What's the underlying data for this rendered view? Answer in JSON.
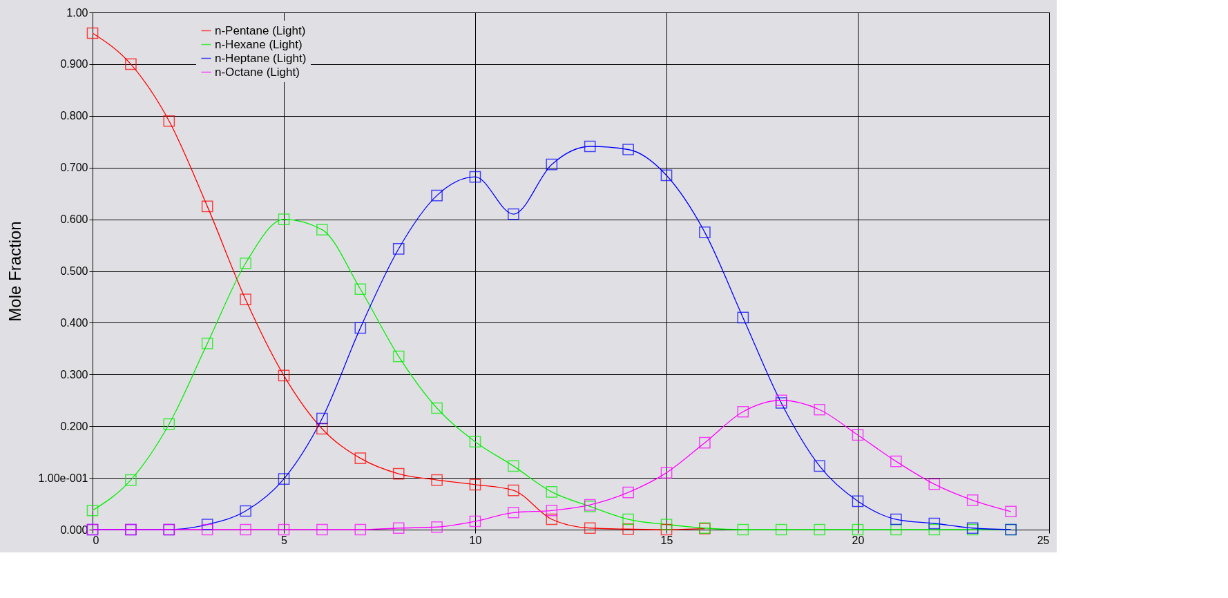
{
  "chart_data": {
    "type": "line",
    "ylabel": "Mole Fraction",
    "x": [
      0,
      1,
      2,
      3,
      4,
      5,
      6,
      7,
      8,
      9,
      10,
      11,
      12,
      13,
      14,
      15,
      16,
      17,
      18,
      19,
      20,
      21,
      22,
      23,
      24
    ],
    "series": [
      {
        "name": "n-Pentane (Light)",
        "color": "#ff0000",
        "values": [
          0.96,
          0.9,
          0.79,
          0.625,
          0.445,
          0.298,
          0.195,
          0.138,
          0.108,
          0.096,
          0.087,
          0.076,
          0.02,
          0.003,
          0.001,
          0,
          0.002,
          null,
          null,
          null,
          null,
          null,
          null,
          null,
          null
        ]
      },
      {
        "name": "n-Hexane (Light)",
        "color": "#00ee00",
        "values": [
          0.037,
          0.096,
          0.204,
          0.36,
          0.515,
          0.6,
          0.58,
          0.465,
          0.335,
          0.235,
          0.17,
          0.123,
          0.073,
          0.045,
          0.02,
          0.01,
          0.003,
          0,
          0,
          0,
          0,
          0,
          0,
          0,
          0
        ]
      },
      {
        "name": "n-Heptane (Light)",
        "color": "#0000ff",
        "values": [
          0,
          0,
          0,
          0.01,
          0.036,
          0.098,
          0.215,
          0.39,
          0.543,
          0.646,
          0.682,
          0.61,
          0.706,
          0.741,
          0.735,
          0.685,
          0.575,
          0.41,
          0.245,
          0.123,
          0.055,
          0.02,
          0.012,
          0.003,
          0
        ]
      },
      {
        "name": "n-Octane (Light)",
        "color": "#ff00ff",
        "values": [
          0,
          0,
          0,
          0,
          0,
          0,
          0,
          0,
          0.003,
          0.005,
          0.016,
          0.033,
          0.037,
          0.048,
          0.072,
          0.11,
          0.168,
          0.228,
          0.25,
          0.232,
          0.183,
          0.132,
          0.088,
          0.057,
          0.035
        ]
      }
    ],
    "xlim": [
      0,
      25
    ],
    "xticks": [
      0,
      5,
      10,
      15,
      20,
      25
    ],
    "ylim": [
      0,
      1
    ],
    "yticks": [
      {
        "value": 0,
        "label": "0.000"
      },
      {
        "value": 0.1,
        "label": "1.00e-001"
      },
      {
        "value": 0.2,
        "label": "0.200"
      },
      {
        "value": 0.3,
        "label": "0.300"
      },
      {
        "value": 0.4,
        "label": "0.400"
      },
      {
        "value": 0.5,
        "label": "0.500"
      },
      {
        "value": 0.6,
        "label": "0.600"
      },
      {
        "value": 0.7,
        "label": "0.700"
      },
      {
        "value": 0.8,
        "label": "0.800"
      },
      {
        "value": 0.9,
        "label": "0.900"
      },
      {
        "value": 1,
        "label": "1.00"
      }
    ],
    "grid": true,
    "legend": "top left",
    "marker": "square",
    "line_style": "solid"
  }
}
